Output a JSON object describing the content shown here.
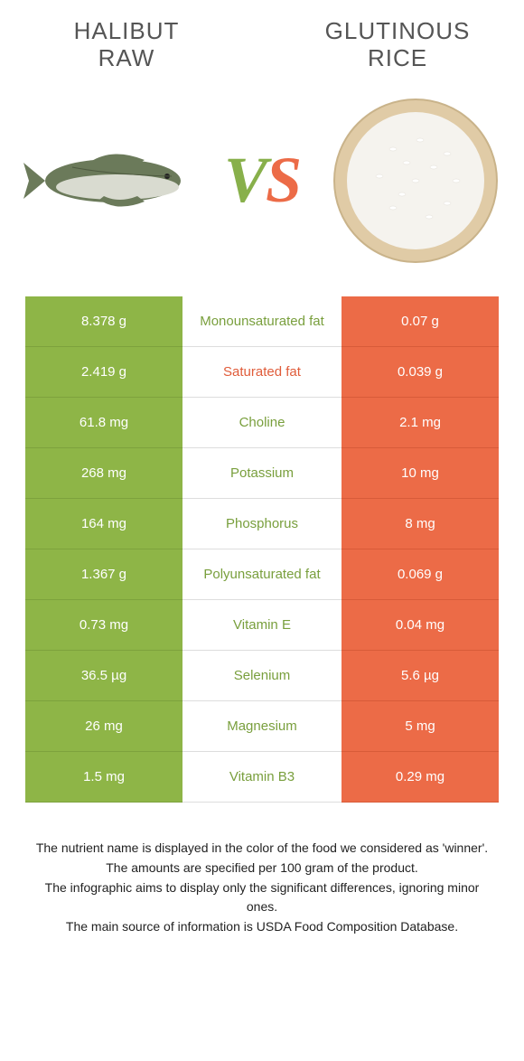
{
  "colors": {
    "left_bg": "#8eb547",
    "left_border": "#7da23d",
    "right_bg": "#ec6b47",
    "right_border": "#d85b39",
    "left_text": "#799f3d",
    "right_text": "#e05c3a"
  },
  "left": {
    "title_line1": "Halibut",
    "title_line2": "raw"
  },
  "right": {
    "title_line1": "Glutinous",
    "title_line2": "rice"
  },
  "vs": {
    "v": "V",
    "s": "S"
  },
  "rows": [
    {
      "left": "8.378 g",
      "label": "Monounsaturated fat",
      "right": "0.07 g",
      "winner": "left"
    },
    {
      "left": "2.419 g",
      "label": "Saturated fat",
      "right": "0.039 g",
      "winner": "right"
    },
    {
      "left": "61.8 mg",
      "label": "Choline",
      "right": "2.1 mg",
      "winner": "left"
    },
    {
      "left": "268 mg",
      "label": "Potassium",
      "right": "10 mg",
      "winner": "left"
    },
    {
      "left": "164 mg",
      "label": "Phosphorus",
      "right": "8 mg",
      "winner": "left"
    },
    {
      "left": "1.367 g",
      "label": "Polyunsaturated fat",
      "right": "0.069 g",
      "winner": "left"
    },
    {
      "left": "0.73 mg",
      "label": "Vitamin E",
      "right": "0.04 mg",
      "winner": "left"
    },
    {
      "left": "36.5 µg",
      "label": "Selenium",
      "right": "5.6 µg",
      "winner": "left"
    },
    {
      "left": "26 mg",
      "label": "Magnesium",
      "right": "5 mg",
      "winner": "left"
    },
    {
      "left": "1.5 mg",
      "label": "Vitamin B3",
      "right": "0.29 mg",
      "winner": "left"
    }
  ],
  "footer": [
    "The nutrient name is displayed in the color of the food we considered as 'winner'.",
    "The amounts are specified per 100 gram of the product.",
    "The infographic aims to display only the significant differences, ignoring minor ones.",
    "The main source of information is USDA Food Composition Database."
  ]
}
